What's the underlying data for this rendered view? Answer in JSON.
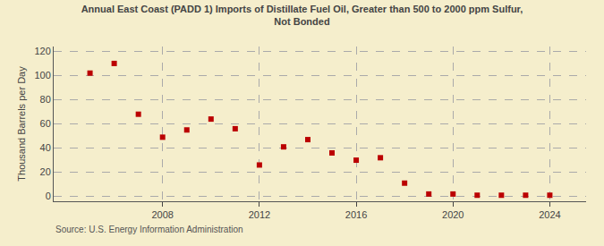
{
  "chart_data": {
    "type": "scatter",
    "title": "Annual East Coast (PADD 1) Imports of Distillate Fuel Oil, Greater than 500 to 2000 ppm Sulfur,\nNot Bonded",
    "ylabel": "Thousand Barrels per Day",
    "annotations": [
      "Source: U.S. Energy Information Administration"
    ],
    "x": [
      2005,
      2006,
      2007,
      2008,
      2009,
      2010,
      2011,
      2012,
      2013,
      2014,
      2015,
      2016,
      2017,
      2018,
      2019,
      2020,
      2021,
      2022,
      2023,
      2024
    ],
    "values": [
      102,
      110,
      68,
      49,
      55,
      64,
      56,
      26,
      41,
      47,
      36,
      30,
      32,
      11,
      2,
      2,
      1,
      1,
      1,
      1
    ],
    "color": "#bb0000",
    "marker": "square",
    "xlim": [
      2003.5,
      2025.5
    ],
    "xticks": [
      2008,
      2012,
      2016,
      2020,
      2024
    ],
    "ylim": [
      -4,
      124
    ],
    "yticks": [
      0,
      20,
      40,
      60,
      80,
      100,
      120
    ],
    "grid": true
  }
}
